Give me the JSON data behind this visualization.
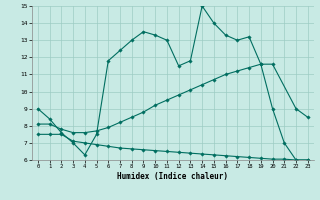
{
  "xlabel": "Humidex (Indice chaleur)",
  "xlim": [
    -0.5,
    23.5
  ],
  "ylim": [
    6,
    15
  ],
  "xticks": [
    0,
    1,
    2,
    3,
    4,
    5,
    6,
    7,
    8,
    9,
    10,
    11,
    12,
    13,
    14,
    15,
    16,
    17,
    18,
    19,
    20,
    21,
    22,
    23
  ],
  "yticks": [
    6,
    7,
    8,
    9,
    10,
    11,
    12,
    13,
    14,
    15
  ],
  "background_color": "#c8eae4",
  "grid_color": "#9dccc4",
  "line_color": "#006e60",
  "line1_x": [
    0,
    1,
    2,
    3,
    4,
    5,
    6,
    7,
    8,
    9,
    10,
    11,
    12,
    13,
    14,
    15,
    16,
    17,
    18,
    19,
    20,
    21,
    22,
    23
  ],
  "line1_y": [
    9.0,
    8.4,
    7.6,
    7.0,
    6.3,
    7.5,
    11.8,
    12.4,
    13.0,
    13.5,
    13.3,
    13.0,
    11.5,
    11.8,
    15.0,
    14.0,
    13.3,
    13.0,
    13.2,
    11.6,
    9.0,
    7.0,
    6.0,
    6.0
  ],
  "line2_x": [
    0,
    1,
    2,
    3,
    4,
    5,
    6,
    7,
    8,
    9,
    10,
    11,
    12,
    13,
    14,
    15,
    16,
    17,
    18,
    19,
    20,
    22,
    23
  ],
  "line2_y": [
    8.1,
    8.1,
    7.8,
    7.6,
    7.6,
    7.7,
    7.9,
    8.2,
    8.5,
    8.8,
    9.2,
    9.5,
    9.8,
    10.1,
    10.4,
    10.7,
    11.0,
    11.2,
    11.4,
    11.6,
    11.6,
    9.0,
    8.5
  ],
  "line3_x": [
    0,
    1,
    2,
    3,
    4,
    5,
    6,
    7,
    8,
    9,
    10,
    11,
    12,
    13,
    14,
    15,
    16,
    17,
    18,
    19,
    20,
    21,
    22,
    23
  ],
  "line3_y": [
    7.5,
    7.5,
    7.5,
    7.1,
    7.0,
    6.9,
    6.8,
    6.7,
    6.65,
    6.6,
    6.55,
    6.5,
    6.45,
    6.4,
    6.35,
    6.3,
    6.25,
    6.2,
    6.15,
    6.1,
    6.05,
    6.05,
    6.0,
    6.0
  ]
}
